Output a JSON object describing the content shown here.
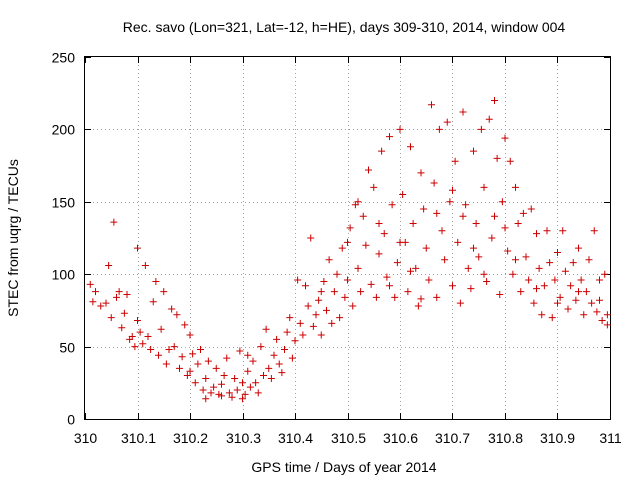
{
  "chart_data": {
    "type": "scatter",
    "title": "Rec. savo (Lon=321, Lat=-12, h=HE), days 309-310, 2014, window 004",
    "xlabel": "GPS time / Days of year 2014",
    "ylabel": "STEC from uqrg / TECUs",
    "xlim": [
      310,
      311
    ],
    "ylim": [
      0,
      250
    ],
    "xticks": [
      310,
      310.1,
      310.2,
      310.3,
      310.4,
      310.5,
      310.6,
      310.7,
      310.8,
      310.9,
      311
    ],
    "xtick_labels": [
      "310",
      "310.1",
      "310.2",
      "310.3",
      "310.4",
      "310.5",
      "310.6",
      "310.7",
      "310.8",
      "310.9",
      "311"
    ],
    "yticks": [
      0,
      50,
      100,
      150,
      200,
      250
    ],
    "ytick_labels": [
      "0",
      "50",
      "100",
      "150",
      "200",
      "250"
    ],
    "grid": true,
    "marker": "+",
    "color": "#cc0000",
    "series": [
      {
        "points": [
          [
            310.01,
            93
          ],
          [
            310.015,
            81
          ],
          [
            310.03,
            78
          ],
          [
            310.04,
            80
          ],
          [
            310.045,
            106
          ],
          [
            310.05,
            70
          ],
          [
            310.06,
            84
          ],
          [
            310.065,
            88
          ],
          [
            310.07,
            63
          ],
          [
            310.075,
            73
          ],
          [
            310.08,
            86
          ],
          [
            310.09,
            57
          ],
          [
            310.1,
            118
          ],
          [
            310.1,
            68
          ],
          [
            310.105,
            60
          ],
          [
            310.11,
            52
          ],
          [
            310.115,
            106
          ],
          [
            310.12,
            57
          ],
          [
            310.125,
            48
          ],
          [
            310.13,
            81
          ],
          [
            310.135,
            95
          ],
          [
            310.14,
            44
          ],
          [
            310.145,
            62
          ],
          [
            310.15,
            88
          ],
          [
            310.155,
            38
          ],
          [
            310.16,
            48
          ],
          [
            310.165,
            76
          ],
          [
            310.17,
            50
          ],
          [
            310.175,
            72
          ],
          [
            310.18,
            35
          ],
          [
            310.185,
            43
          ],
          [
            310.19,
            65
          ],
          [
            310.195,
            30
          ],
          [
            310.2,
            58
          ],
          [
            310.205,
            45
          ],
          [
            310.21,
            25
          ],
          [
            310.215,
            38
          ],
          [
            310.22,
            48
          ],
          [
            310.225,
            20
          ],
          [
            310.23,
            28
          ],
          [
            310.235,
            40
          ],
          [
            310.24,
            18
          ],
          [
            310.245,
            22
          ],
          [
            310.25,
            35
          ],
          [
            310.255,
            17
          ],
          [
            310.26,
            24
          ],
          [
            310.265,
            30
          ],
          [
            310.27,
            42
          ],
          [
            310.275,
            18
          ],
          [
            310.28,
            15
          ],
          [
            310.285,
            28
          ],
          [
            310.29,
            20
          ],
          [
            310.295,
            47
          ],
          [
            310.3,
            25
          ],
          [
            310.305,
            17
          ],
          [
            310.31,
            33
          ],
          [
            310.315,
            22
          ],
          [
            310.32,
            40
          ],
          [
            310.325,
            25
          ],
          [
            310.33,
            18
          ],
          [
            310.335,
            50
          ],
          [
            310.34,
            30
          ],
          [
            310.345,
            62
          ],
          [
            310.35,
            35
          ],
          [
            310.355,
            28
          ],
          [
            310.36,
            44
          ],
          [
            310.365,
            55
          ],
          [
            310.37,
            38
          ],
          [
            310.375,
            32
          ],
          [
            310.38,
            48
          ],
          [
            310.385,
            60
          ],
          [
            310.39,
            70
          ],
          [
            310.395,
            42
          ],
          [
            310.4,
            54
          ],
          [
            310.405,
            96
          ],
          [
            310.41,
            66
          ],
          [
            310.415,
            58
          ],
          [
            310.42,
            92
          ],
          [
            310.425,
            78
          ],
          [
            310.43,
            125
          ],
          [
            310.435,
            64
          ],
          [
            310.44,
            72
          ],
          [
            310.445,
            82
          ],
          [
            310.45,
            58
          ],
          [
            310.455,
            95
          ],
          [
            310.46,
            75
          ],
          [
            310.465,
            110
          ],
          [
            310.47,
            66
          ],
          [
            310.475,
            88
          ],
          [
            310.48,
            100
          ],
          [
            310.485,
            70
          ],
          [
            310.49,
            118
          ],
          [
            310.495,
            84
          ],
          [
            310.5,
            96
          ],
          [
            310.505,
            132
          ],
          [
            310.51,
            78
          ],
          [
            310.515,
            148
          ],
          [
            310.52,
            104
          ],
          [
            310.525,
            88
          ],
          [
            310.53,
            140
          ],
          [
            310.535,
            120
          ],
          [
            310.54,
            172
          ],
          [
            310.545,
            93
          ],
          [
            310.55,
            160
          ],
          [
            310.555,
            84
          ],
          [
            310.56,
            114
          ],
          [
            310.565,
            185
          ],
          [
            310.57,
            128
          ],
          [
            310.575,
            98
          ],
          [
            310.58,
            195
          ],
          [
            310.585,
            148
          ],
          [
            310.59,
            84
          ],
          [
            310.595,
            108
          ],
          [
            310.6,
            200
          ],
          [
            310.605,
            155
          ],
          [
            310.61,
            122
          ],
          [
            310.615,
            88
          ],
          [
            310.62,
            188
          ],
          [
            310.625,
            135
          ],
          [
            310.63,
            104
          ],
          [
            310.635,
            78
          ],
          [
            310.64,
            170
          ],
          [
            310.645,
            145
          ],
          [
            310.65,
            118
          ],
          [
            310.655,
            96
          ],
          [
            310.66,
            217
          ],
          [
            310.665,
            163
          ],
          [
            310.67,
            84
          ],
          [
            310.675,
            200
          ],
          [
            310.68,
            130
          ],
          [
            310.685,
            110
          ],
          [
            310.69,
            205
          ],
          [
            310.695,
            150
          ],
          [
            310.7,
            92
          ],
          [
            310.705,
            178
          ],
          [
            310.71,
            122
          ],
          [
            310.715,
            80
          ],
          [
            310.72,
            212
          ],
          [
            310.725,
            148
          ],
          [
            310.73,
            104
          ],
          [
            310.735,
            90
          ],
          [
            310.74,
            185
          ],
          [
            310.745,
            135
          ],
          [
            310.75,
            112
          ],
          [
            310.755,
            200
          ],
          [
            310.76,
            160
          ],
          [
            310.765,
            95
          ],
          [
            310.77,
            207
          ],
          [
            310.775,
            125
          ],
          [
            310.78,
            220
          ],
          [
            310.785,
            180
          ],
          [
            310.79,
            86
          ],
          [
            310.795,
            150
          ],
          [
            310.8,
            194
          ],
          [
            310.805,
            116
          ],
          [
            310.81,
            178
          ],
          [
            310.815,
            100
          ],
          [
            310.82,
            160
          ],
          [
            310.825,
            135
          ],
          [
            310.83,
            88
          ],
          [
            310.835,
            142
          ],
          [
            310.84,
            112
          ],
          [
            310.845,
            96
          ],
          [
            310.85,
            145
          ],
          [
            310.855,
            80
          ],
          [
            310.86,
            128
          ],
          [
            310.865,
            104
          ],
          [
            310.87,
            72
          ],
          [
            310.875,
            92
          ],
          [
            310.88,
            130
          ],
          [
            310.885,
            108
          ],
          [
            310.89,
            70
          ],
          [
            310.895,
            96
          ],
          [
            310.9,
            115
          ],
          [
            310.905,
            84
          ],
          [
            310.91,
            130
          ],
          [
            310.915,
            102
          ],
          [
            310.92,
            76
          ],
          [
            310.925,
            92
          ],
          [
            310.93,
            108
          ],
          [
            310.935,
            82
          ],
          [
            310.94,
            118
          ],
          [
            310.945,
            96
          ],
          [
            310.95,
            72
          ],
          [
            310.955,
            88
          ],
          [
            310.96,
            110
          ],
          [
            310.965,
            80
          ],
          [
            310.97,
            130
          ],
          [
            310.975,
            74
          ],
          [
            310.98,
            96
          ],
          [
            310.985,
            68
          ],
          [
            310.99,
            100
          ],
          [
            310.995,
            72
          ],
          [
            310.995,
            65
          ],
          [
            310.02,
            88
          ],
          [
            310.055,
            136
          ],
          [
            310.085,
            55
          ],
          [
            310.095,
            50
          ],
          [
            310.2,
            33
          ],
          [
            310.23,
            14
          ],
          [
            310.26,
            16
          ],
          [
            310.3,
            14
          ],
          [
            310.31,
            44
          ],
          [
            310.45,
            88
          ],
          [
            310.5,
            122
          ],
          [
            310.52,
            150
          ],
          [
            310.56,
            135
          ],
          [
            310.58,
            92
          ],
          [
            310.6,
            122
          ],
          [
            310.62,
            102
          ],
          [
            310.64,
            83
          ],
          [
            310.67,
            142
          ],
          [
            310.7,
            158
          ],
          [
            310.72,
            140
          ],
          [
            310.74,
            118
          ],
          [
            310.76,
            100
          ],
          [
            310.78,
            140
          ],
          [
            310.8,
            132
          ],
          [
            310.82,
            110
          ],
          [
            310.86,
            90
          ],
          [
            310.9,
            80
          ],
          [
            310.94,
            88
          ],
          [
            310.98,
            82
          ]
        ]
      }
    ]
  }
}
